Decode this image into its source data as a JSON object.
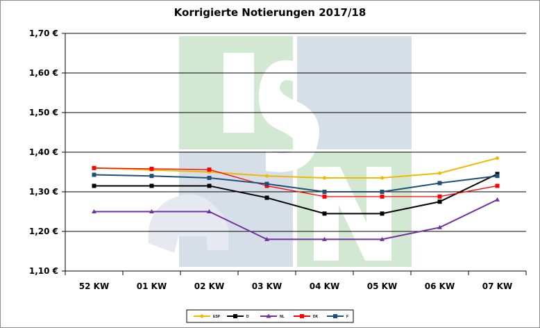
{
  "chart_data": {
    "type": "line",
    "title": "Korrigierte Notierungen 2017/18",
    "xlabel": "",
    "ylabel": "",
    "categories": [
      "52 KW",
      "01 KW",
      "02 KW",
      "03 KW",
      "04 KW",
      "05 KW",
      "06 KW",
      "07 KW"
    ],
    "ylim": [
      1.1,
      1.7
    ],
    "yticks": [
      1.1,
      1.2,
      1.3,
      1.4,
      1.5,
      1.6,
      1.7
    ],
    "ytick_labels": [
      "1,10 €",
      "1,20 €",
      "1,30 €",
      "1,40 €",
      "1,50 €",
      "1,60 €",
      "1,70 €"
    ],
    "grid": true,
    "legend_position": "bottom",
    "series": [
      {
        "name": "ESP",
        "color": "#f2b800",
        "marker": "circle",
        "values": [
          1.36,
          1.355,
          1.35,
          1.34,
          1.335,
          1.335,
          1.347,
          1.385
        ]
      },
      {
        "name": "D",
        "color": "#000000",
        "marker": "square",
        "values": [
          1.315,
          1.315,
          1.315,
          1.285,
          1.245,
          1.245,
          1.275,
          1.345
        ]
      },
      {
        "name": "NL",
        "color": "#7030a0",
        "marker": "triangle",
        "values": [
          1.25,
          1.25,
          1.25,
          1.18,
          1.18,
          1.18,
          1.21,
          1.28
        ]
      },
      {
        "name": "DK",
        "color": "#ff0000",
        "marker": "square",
        "values": [
          1.36,
          1.358,
          1.356,
          1.315,
          1.288,
          1.288,
          1.288,
          1.315
        ]
      },
      {
        "name": "F",
        "color": "#1f4e79",
        "marker": "square",
        "values": [
          1.343,
          1.34,
          1.335,
          1.32,
          1.3,
          1.3,
          1.322,
          1.34
        ]
      }
    ]
  },
  "watermark": {
    "letters": [
      "I",
      "S",
      "N"
    ],
    "colors": {
      "green": "#d3e8d3",
      "blue": "#d6dee8"
    }
  }
}
